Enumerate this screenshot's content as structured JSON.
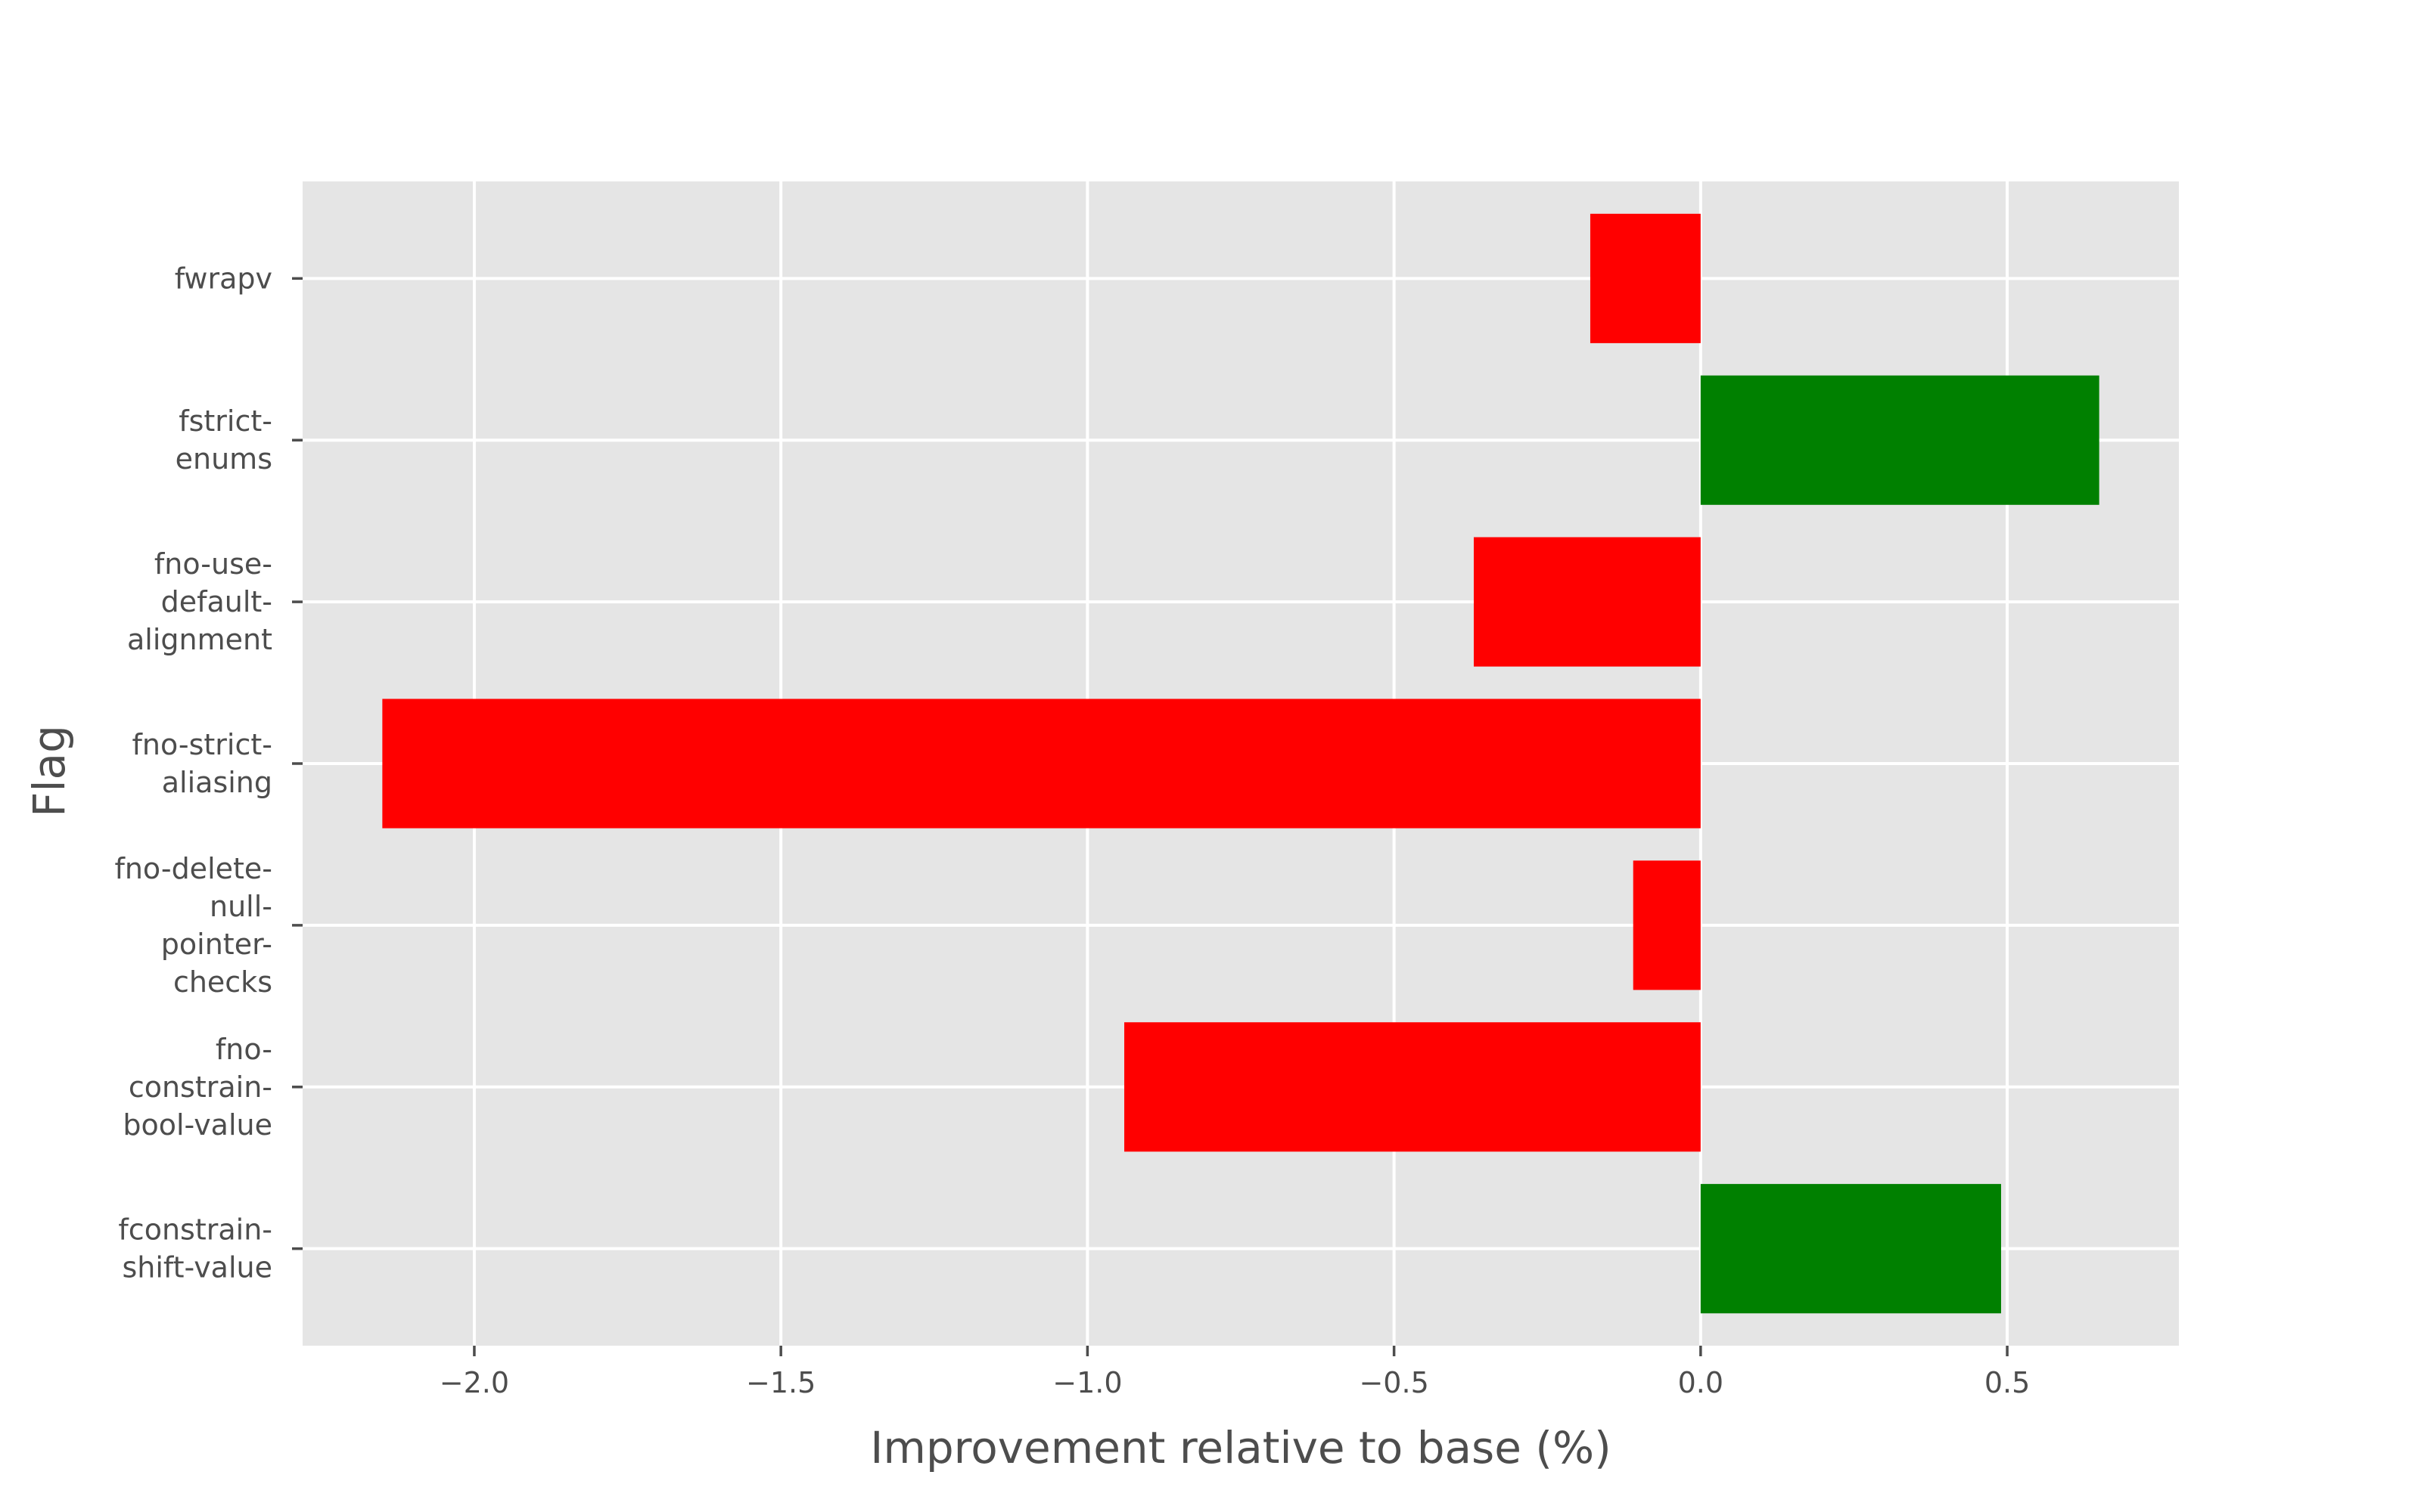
{
  "chart_data": {
    "type": "bar",
    "orientation": "horizontal",
    "title": "",
    "xlabel": "Improvement relative to base (%)",
    "ylabel": "Flag",
    "xlim": [
      -2.28,
      0.78
    ],
    "xticks": [
      -2.0,
      -1.5,
      -1.0,
      -0.5,
      0.0,
      0.5
    ],
    "xtick_labels": [
      "−2.0",
      "−1.5",
      "−1.0",
      "−0.5",
      "0.0",
      "0.5"
    ],
    "grid": true,
    "background": "#e5e5e5",
    "colors": {
      "positive": "#008000",
      "negative": "#ff0000"
    },
    "categories": [
      "fconstrain-shift-value",
      "fno-constrain-bool-value",
      "fno-delete-null-pointer-checks",
      "fno-strict-aliasing",
      "fno-use-default-alignment",
      "fstrict-enums",
      "fwrapv"
    ],
    "category_label_lines": [
      [
        "fconstrain-",
        "shift-value"
      ],
      [
        "fno-",
        "constrain-",
        "bool-value"
      ],
      [
        "fno-delete-",
        "null-",
        "pointer-",
        "checks"
      ],
      [
        "fno-strict-",
        "aliasing"
      ],
      [
        "fno-use-",
        "default-",
        "alignment"
      ],
      [
        "fstrict-",
        "enums"
      ],
      [
        "fwrapv"
      ]
    ],
    "values": [
      0.49,
      -0.94,
      -0.11,
      -2.15,
      -0.37,
      0.65,
      -0.18
    ]
  }
}
